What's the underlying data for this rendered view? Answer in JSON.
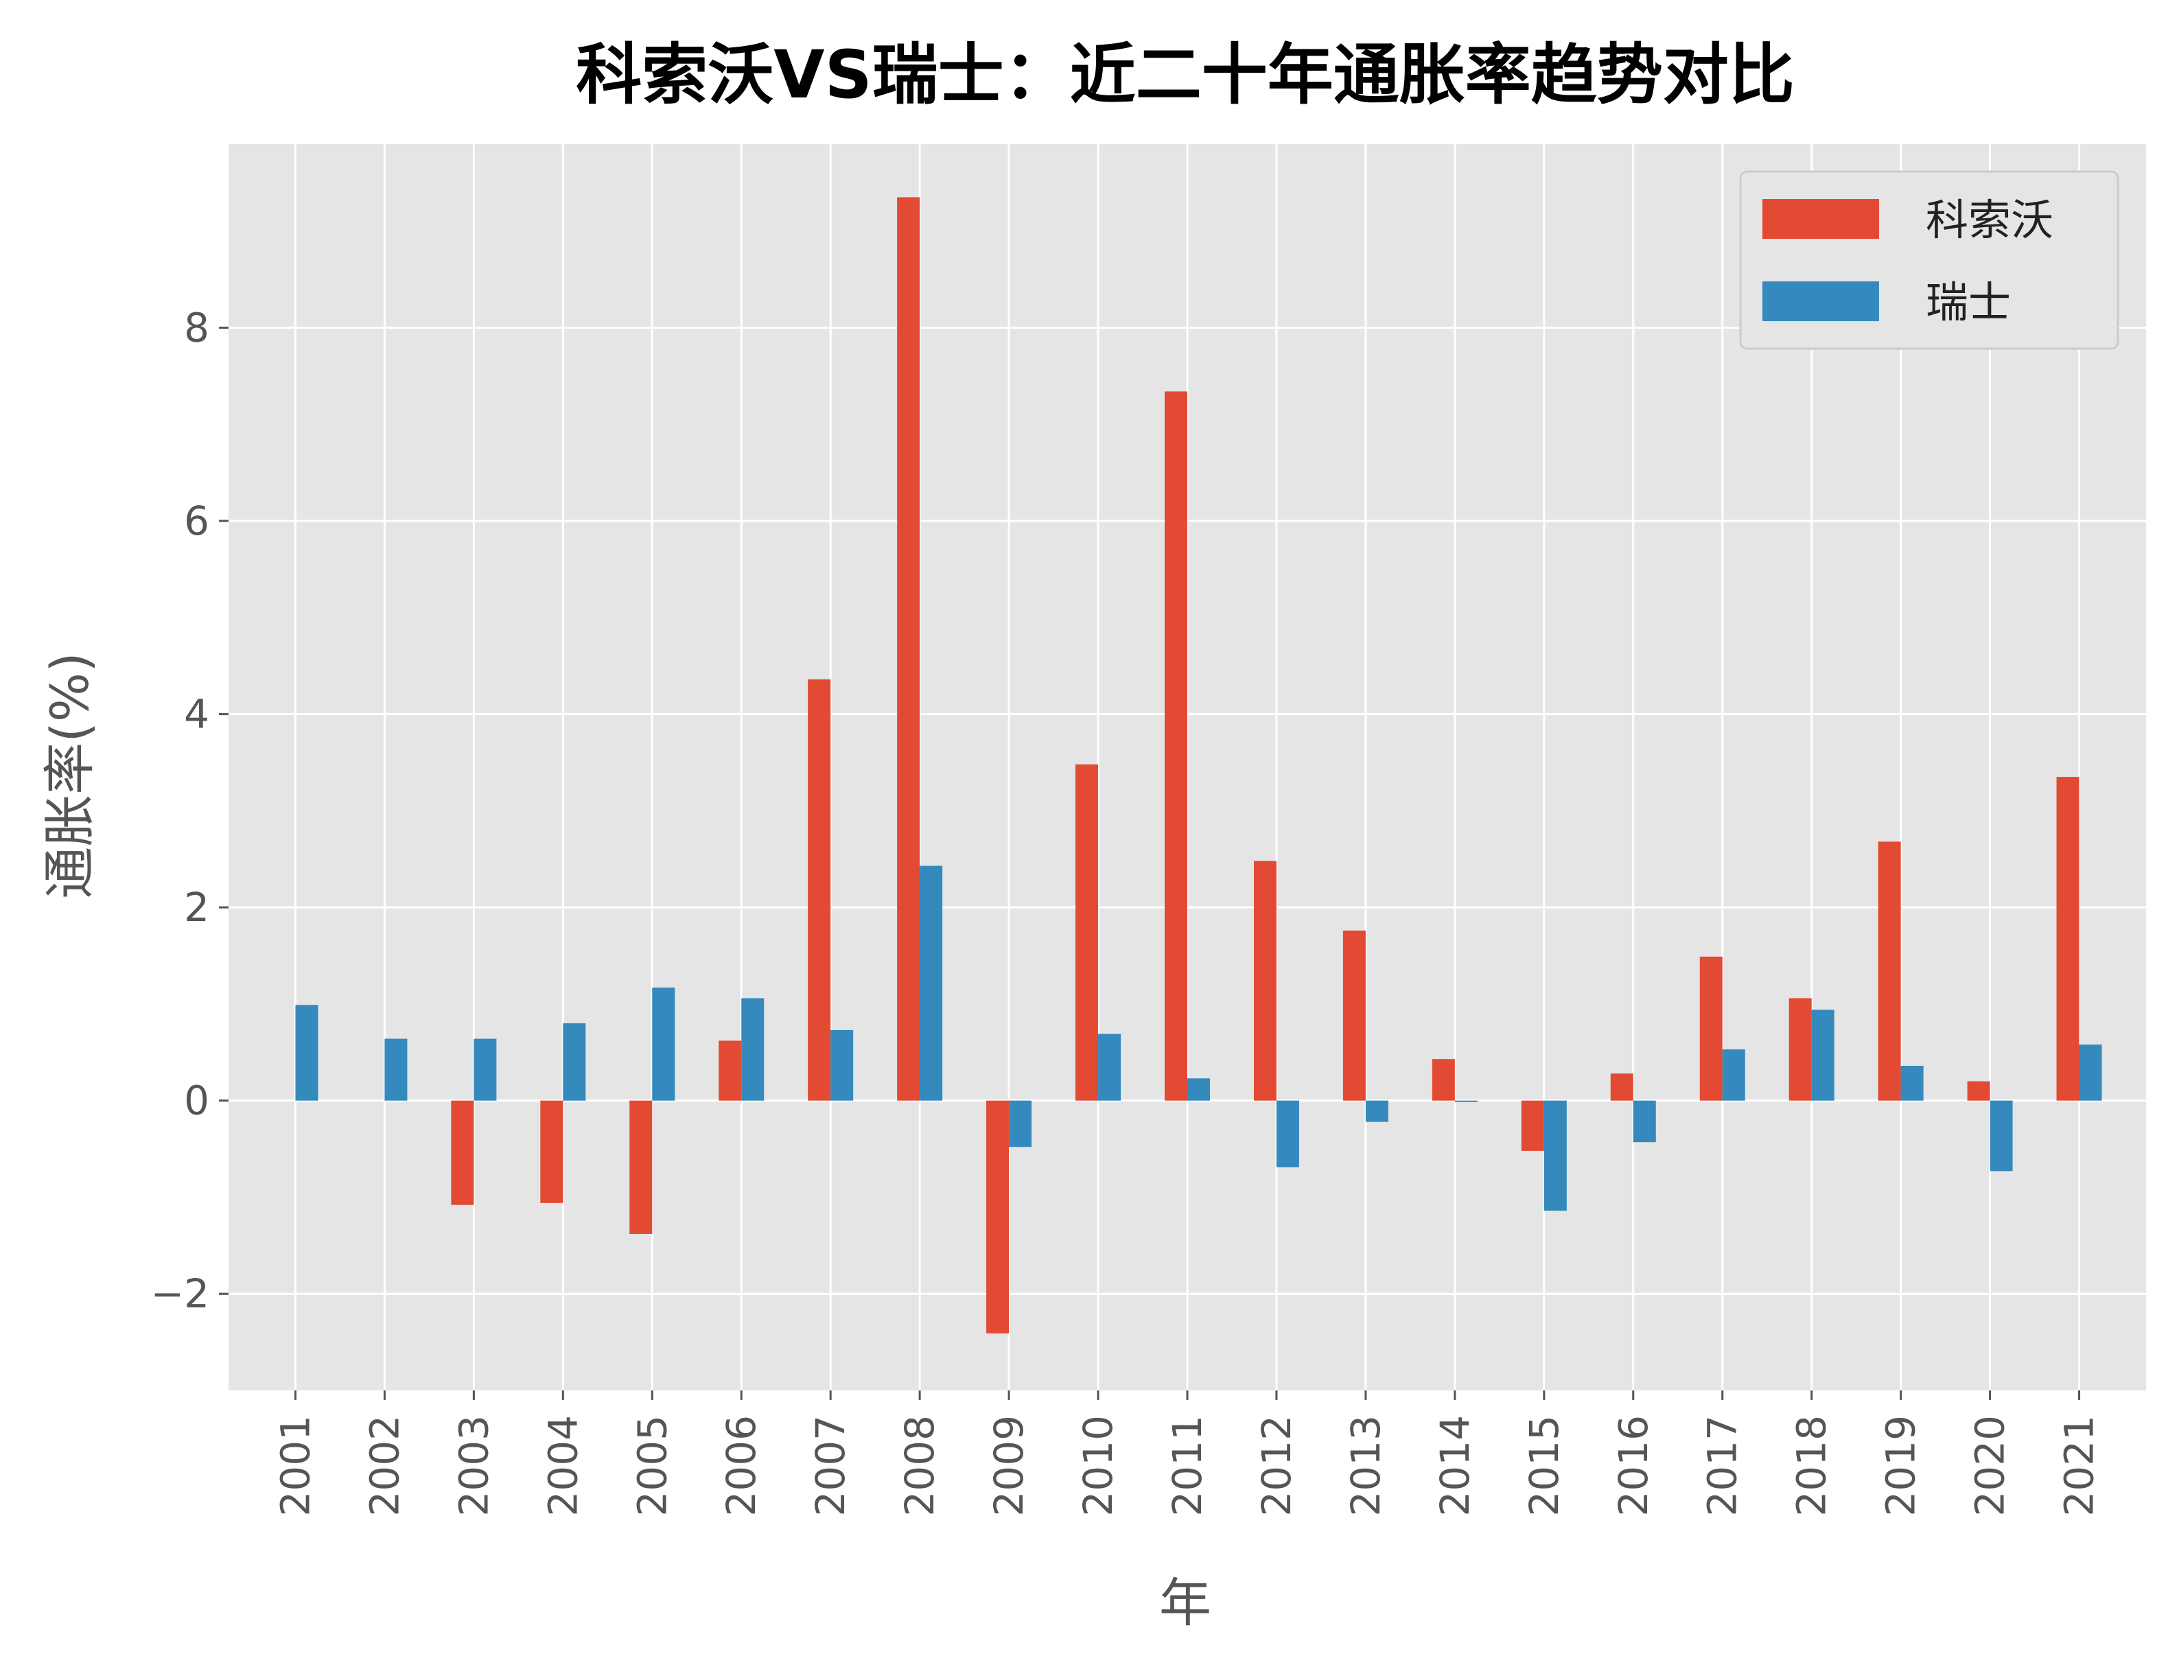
{
  "chart_data": {
    "type": "bar",
    "title": "科索沃VS瑞士：近二十年通胀率趋势对比",
    "xlabel": "年",
    "ylabel": "通胀率(%)",
    "ylim": [
      -3,
      9.9
    ],
    "yticks": [
      -2,
      0,
      2,
      4,
      6,
      8
    ],
    "categories": [
      "2001",
      "2002",
      "2003",
      "2004",
      "2005",
      "2006",
      "2007",
      "2008",
      "2009",
      "2010",
      "2011",
      "2012",
      "2013",
      "2014",
      "2015",
      "2016",
      "2017",
      "2018",
      "2019",
      "2020",
      "2021"
    ],
    "series": [
      {
        "name": "科索沃",
        "color": "#e24a33",
        "values": [
          null,
          null,
          -1.08,
          -1.06,
          -1.38,
          0.62,
          4.36,
          9.35,
          -2.41,
          3.48,
          7.34,
          2.48,
          1.76,
          0.43,
          -0.52,
          0.28,
          1.49,
          1.06,
          2.68,
          0.2,
          3.35
        ]
      },
      {
        "name": "瑞士",
        "color": "#348abd",
        "values": [
          0.99,
          0.64,
          0.64,
          0.8,
          1.17,
          1.06,
          0.73,
          2.43,
          -0.48,
          0.69,
          0.23,
          -0.69,
          -0.22,
          -0.01,
          -1.14,
          -0.43,
          0.53,
          0.94,
          0.36,
          -0.73,
          0.58
        ]
      }
    ],
    "legend": "top-right",
    "grid": true
  }
}
